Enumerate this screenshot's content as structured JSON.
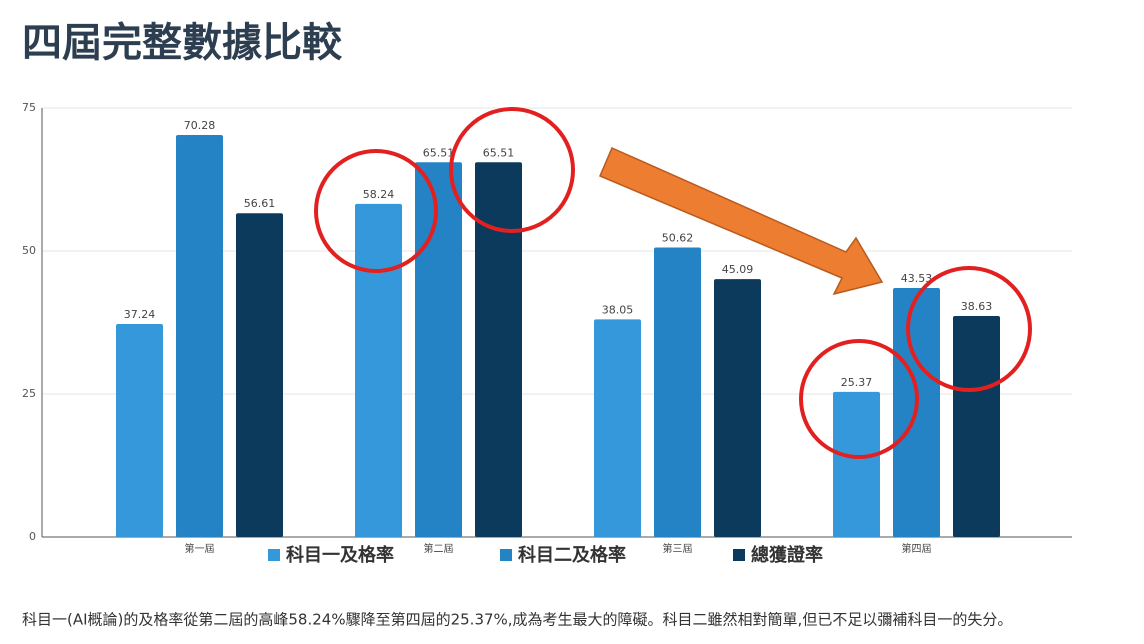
{
  "chart_data": {
    "type": "bar",
    "title": "四屆完整數據比較",
    "categories": [
      "第一屆",
      "第二屆",
      "第三屆",
      "第四屆"
    ],
    "series": [
      {
        "name": "科目一及格率",
        "color": "#3498db",
        "values": [
          37.24,
          58.24,
          38.05,
          25.37
        ]
      },
      {
        "name": "科目二及格率",
        "color": "#2483c5",
        "values": [
          70.28,
          65.51,
          50.62,
          43.53
        ]
      },
      {
        "name": "總獲證率",
        "color": "#0b3a5c",
        "values": [
          56.61,
          65.51,
          45.09,
          38.63
        ]
      }
    ],
    "ylim": [
      0,
      75
    ],
    "yticks": [
      0,
      25,
      50,
      75
    ],
    "grid": true,
    "footnote": "科目一(AI概論)的及格率從第二屆的高峰58.24%驟降至第四屆的25.37%,成為考生最大的障礙。科目二雖然相對簡單,但已不足以彌補科目一的失分。"
  }
}
